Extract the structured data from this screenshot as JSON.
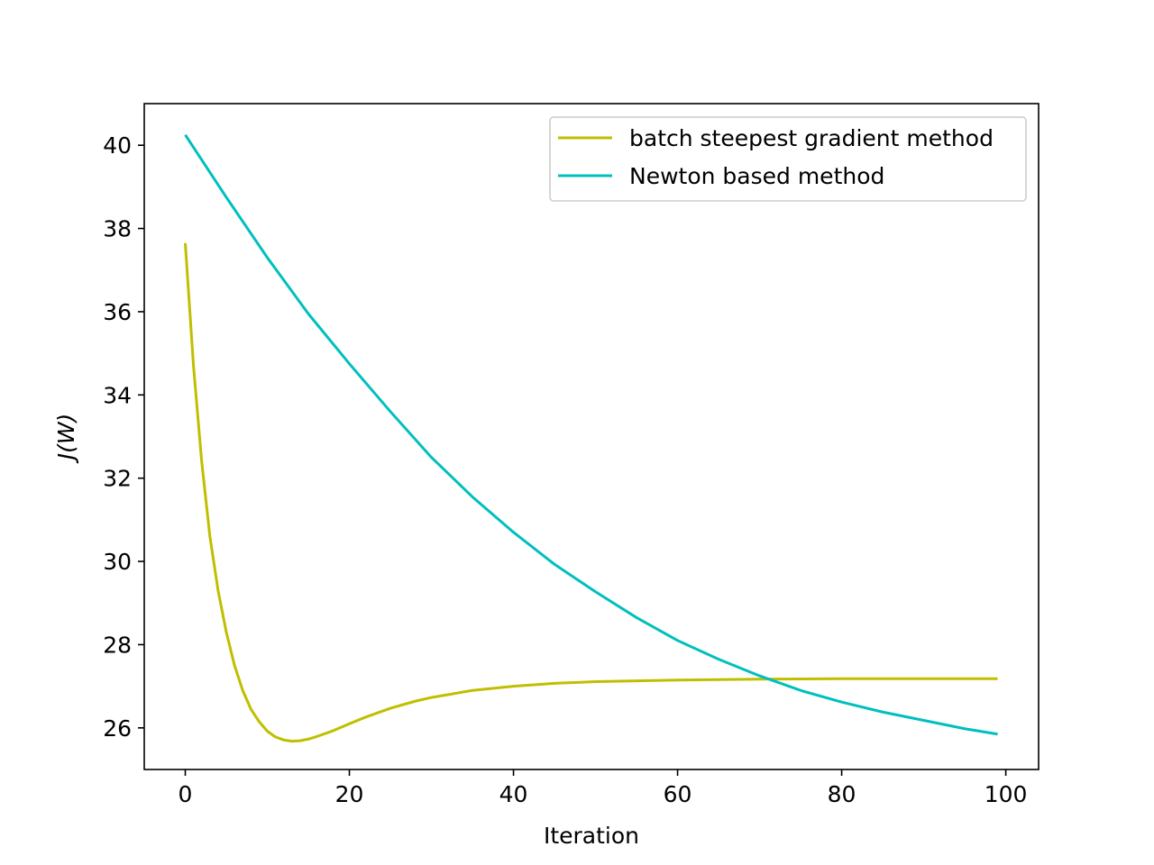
{
  "chart_data": {
    "type": "line",
    "title": "",
    "xlabel": "Iteration",
    "ylabel": "J(W)",
    "xlim": [
      -5,
      104
    ],
    "ylim": [
      25,
      41
    ],
    "xticks": [
      0,
      20,
      40,
      60,
      80,
      100
    ],
    "yticks": [
      26,
      28,
      30,
      32,
      34,
      36,
      38,
      40
    ],
    "grid": false,
    "legend_position": "top-right",
    "series": [
      {
        "name": "batch steepest gradient method",
        "color": "#bfbf00",
        "x": [
          0,
          1,
          2,
          3,
          4,
          5,
          6,
          7,
          8,
          9,
          10,
          11,
          12,
          13,
          14,
          15,
          16,
          18,
          20,
          22,
          25,
          28,
          30,
          35,
          40,
          45,
          50,
          60,
          70,
          80,
          90,
          99
        ],
        "values": [
          37.65,
          34.7,
          32.4,
          30.6,
          29.3,
          28.3,
          27.5,
          26.9,
          26.45,
          26.15,
          25.92,
          25.78,
          25.71,
          25.68,
          25.69,
          25.73,
          25.79,
          25.93,
          26.1,
          26.26,
          26.47,
          26.64,
          26.73,
          26.9,
          27.0,
          27.07,
          27.11,
          27.15,
          27.17,
          27.18,
          27.18,
          27.18
        ]
      },
      {
        "name": "Newton based method",
        "color": "#00bfbf",
        "x": [
          0,
          5,
          10,
          15,
          20,
          25,
          30,
          35,
          40,
          45,
          50,
          55,
          60,
          65,
          70,
          75,
          80,
          85,
          90,
          95,
          99
        ],
        "values": [
          40.25,
          38.75,
          37.3,
          35.95,
          34.75,
          33.6,
          32.5,
          31.55,
          30.7,
          29.93,
          29.27,
          28.65,
          28.1,
          27.65,
          27.25,
          26.9,
          26.62,
          26.38,
          26.18,
          25.98,
          25.85
        ]
      }
    ]
  }
}
